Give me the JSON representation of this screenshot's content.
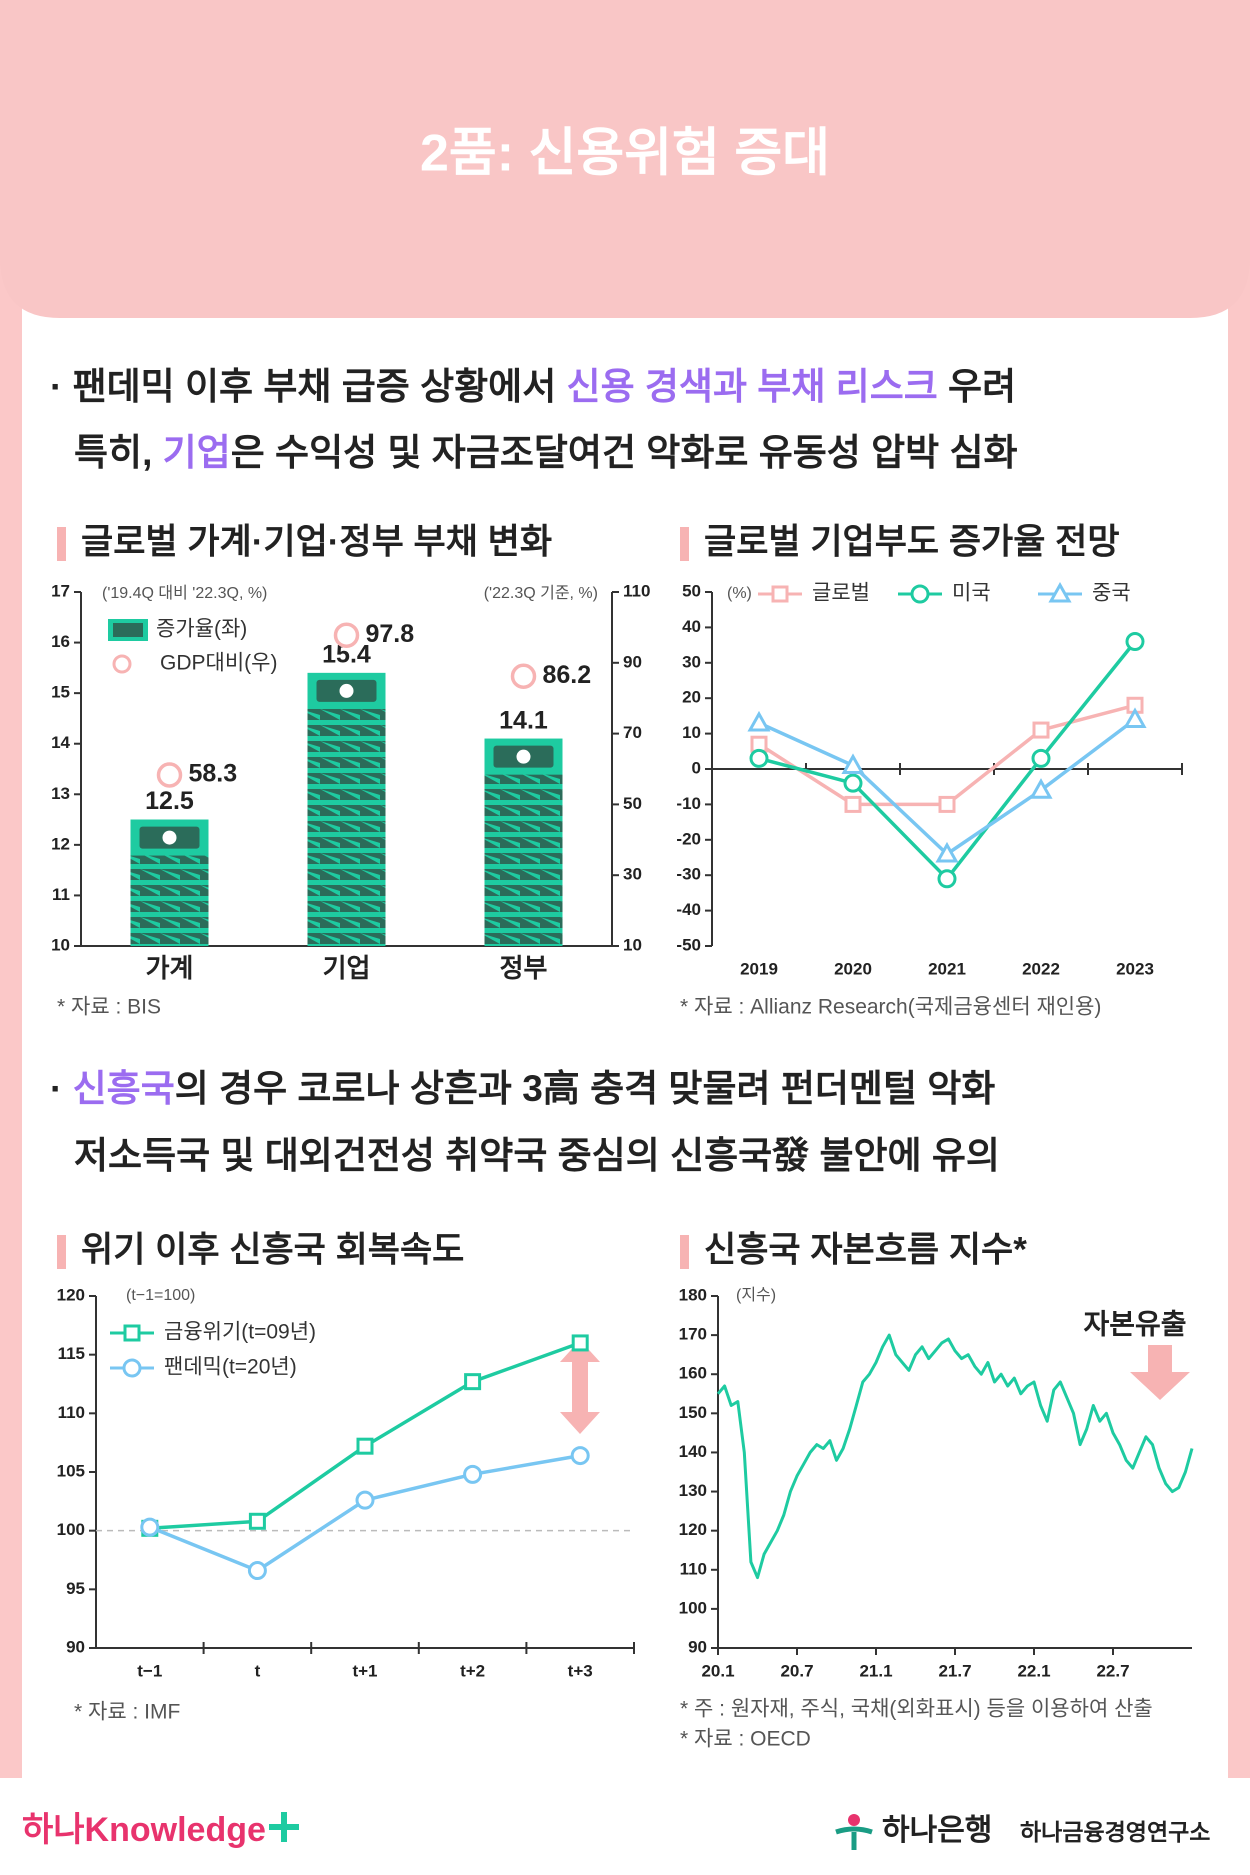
{
  "header": {
    "title": "2품: 신용위험 증대"
  },
  "bullets": [
    {
      "lines": [
        [
          {
            "text": "· 팬데믹 이후 부채 급증 상황에서 "
          },
          {
            "text": "신용 경색과 부채 리스크",
            "color": "#9b6cf0"
          },
          {
            "text": " 우려"
          }
        ],
        [
          {
            "text": "특히, "
          },
          {
            "text": "기업",
            "color": "#9b6cf0"
          },
          {
            "text": "은 수익성 및 자금조달여건 악화로 유동성 압박 심화"
          }
        ]
      ]
    },
    {
      "lines": [
        [
          {
            "text": "· "
          },
          {
            "text": "신흥국",
            "color": "#9b6cf0"
          },
          {
            "text": "의 경우 코로나 상흔과 3高 충격 맞물려 펀더멘털 악화"
          }
        ],
        [
          {
            "text": "저소득국 및 대외건전성 취약국 중심의 신흥국發 불안에 유의"
          }
        ]
      ]
    }
  ],
  "chart_data": [
    {
      "type": "bar",
      "title": "글로벌 가계·기업·정부 부채 변화",
      "y_note": "('19.4Q 대비 '22.3Q, %)",
      "y2_note": "('22.3Q 기준, %)",
      "categories": [
        "가계",
        "기업",
        "정부"
      ],
      "series": [
        {
          "name": "증가율(좌)",
          "color": "#1ecba1",
          "values": [
            12.5,
            15.4,
            14.1
          ]
        },
        {
          "name": "GDP대비(우)",
          "color": "#f7b3b3",
          "axis": "y2",
          "values": [
            58.3,
            97.8,
            86.2
          ]
        }
      ],
      "ylim": [
        10,
        17
      ],
      "yticks": [
        10,
        11,
        12,
        13,
        14,
        15,
        16,
        17
      ],
      "y2lim": [
        10,
        110
      ],
      "y2ticks": [
        10,
        30,
        50,
        70,
        90,
        110
      ],
      "source": "* 자료 : BIS"
    },
    {
      "type": "line",
      "title": "글로벌 기업부도 증가율 전망",
      "y_note": "(%)",
      "categories": [
        "2019",
        "2020",
        "2021",
        "2022",
        "2023"
      ],
      "series": [
        {
          "name": "글로벌",
          "color": "#f7b3b3",
          "marker": "square",
          "values": [
            7,
            -10,
            -10,
            11,
            18
          ]
        },
        {
          "name": "미국",
          "color": "#1ecba1",
          "marker": "circle",
          "values": [
            3,
            -4,
            -31,
            3,
            36
          ]
        },
        {
          "name": "중국",
          "color": "#78c6f2",
          "marker": "triangle",
          "values": [
            13,
            1,
            -24,
            -6,
            14
          ]
        }
      ],
      "ylim": [
        -50,
        50
      ],
      "yticks": [
        -50,
        -40,
        -30,
        -20,
        -10,
        0,
        10,
        20,
        30,
        40,
        50
      ],
      "source": "* 자료 : Allianz Research(국제금융센터 재인용)"
    },
    {
      "type": "line",
      "title": "위기 이후 신흥국 회복속도",
      "y_note": "(t−1=100)",
      "categories": [
        "t−1",
        "t",
        "t+1",
        "t+2",
        "t+3"
      ],
      "series": [
        {
          "name": "금융위기(t=09년)",
          "color": "#1ecba1",
          "marker": "square",
          "values": [
            100.2,
            100.8,
            107.2,
            112.7,
            116
          ]
        },
        {
          "name": "팬데믹(t=20년)",
          "color": "#78c6f2",
          "marker": "circle",
          "values": [
            100.3,
            96.6,
            102.6,
            104.8,
            106.4
          ]
        }
      ],
      "ylim": [
        90,
        120
      ],
      "yticks": [
        90,
        95,
        100,
        105,
        110,
        115,
        120
      ],
      "reference_line": 100,
      "source": "* 자료 : IMF"
    },
    {
      "type": "line",
      "title": "신흥국 자본흐름 지수*",
      "y_note": "(지수)",
      "x": [
        0,
        0.5,
        1,
        1.5,
        2,
        2.5,
        3,
        3.5,
        4,
        4.5,
        5,
        5.5,
        6,
        6.5,
        7,
        7.5,
        8,
        8.5,
        9,
        9.5,
        10,
        10.5,
        11,
        11.5,
        12,
        12.5,
        13,
        13.5,
        14,
        14.5,
        15,
        15.5,
        16,
        16.5,
        17,
        17.5,
        18,
        18.5,
        19,
        19.5,
        20,
        20.5,
        21,
        21.5,
        22,
        22.5,
        23,
        23.5,
        24,
        24.5,
        25,
        25.5,
        26,
        26.5,
        27,
        27.5,
        28,
        28.5,
        29,
        29.5,
        30,
        30.5,
        31,
        31.5,
        32,
        32.5,
        33,
        33.5,
        34,
        34.5,
        35,
        35.5,
        36
      ],
      "series": [
        {
          "color": "#1ecba1",
          "values": [
            155,
            157,
            152,
            153,
            140,
            112,
            108,
            114,
            117,
            120,
            124,
            130,
            134,
            137,
            140,
            142,
            141,
            143,
            138,
            141,
            146,
            152,
            158,
            160,
            163,
            167,
            170,
            165,
            163,
            161,
            165,
            167,
            164,
            166,
            168,
            169,
            166,
            164,
            165,
            162,
            160,
            163,
            158,
            160,
            157,
            159,
            155,
            157,
            158,
            152,
            148,
            156,
            158,
            154,
            150,
            142,
            146,
            152,
            148,
            150,
            145,
            142,
            138,
            136,
            140,
            144,
            142,
            136,
            132,
            130,
            131,
            135,
            141
          ]
        }
      ],
      "xlim": [
        0,
        36
      ],
      "xticks": [
        {
          "value": 0,
          "label": "20.1"
        },
        {
          "value": 6,
          "label": "20.7"
        },
        {
          "value": 12,
          "label": "21.1"
        },
        {
          "value": 18,
          "label": "21.7"
        },
        {
          "value": 24,
          "label": "22.1"
        },
        {
          "value": 30,
          "label": "22.7"
        }
      ],
      "ylim": [
        90,
        180
      ],
      "yticks": [
        90,
        100,
        110,
        120,
        130,
        140,
        150,
        160,
        170,
        180
      ],
      "annotation": "자본유출",
      "notes": [
        "* 주 : 원자재, 주식, 국채(외화표시) 등을 이용하여 산출",
        "* 자료 : OECD"
      ]
    }
  ],
  "footer": {
    "brand": "하나Knowledge",
    "bank": "하나은행",
    "institute": "하나금융경영연구소"
  }
}
